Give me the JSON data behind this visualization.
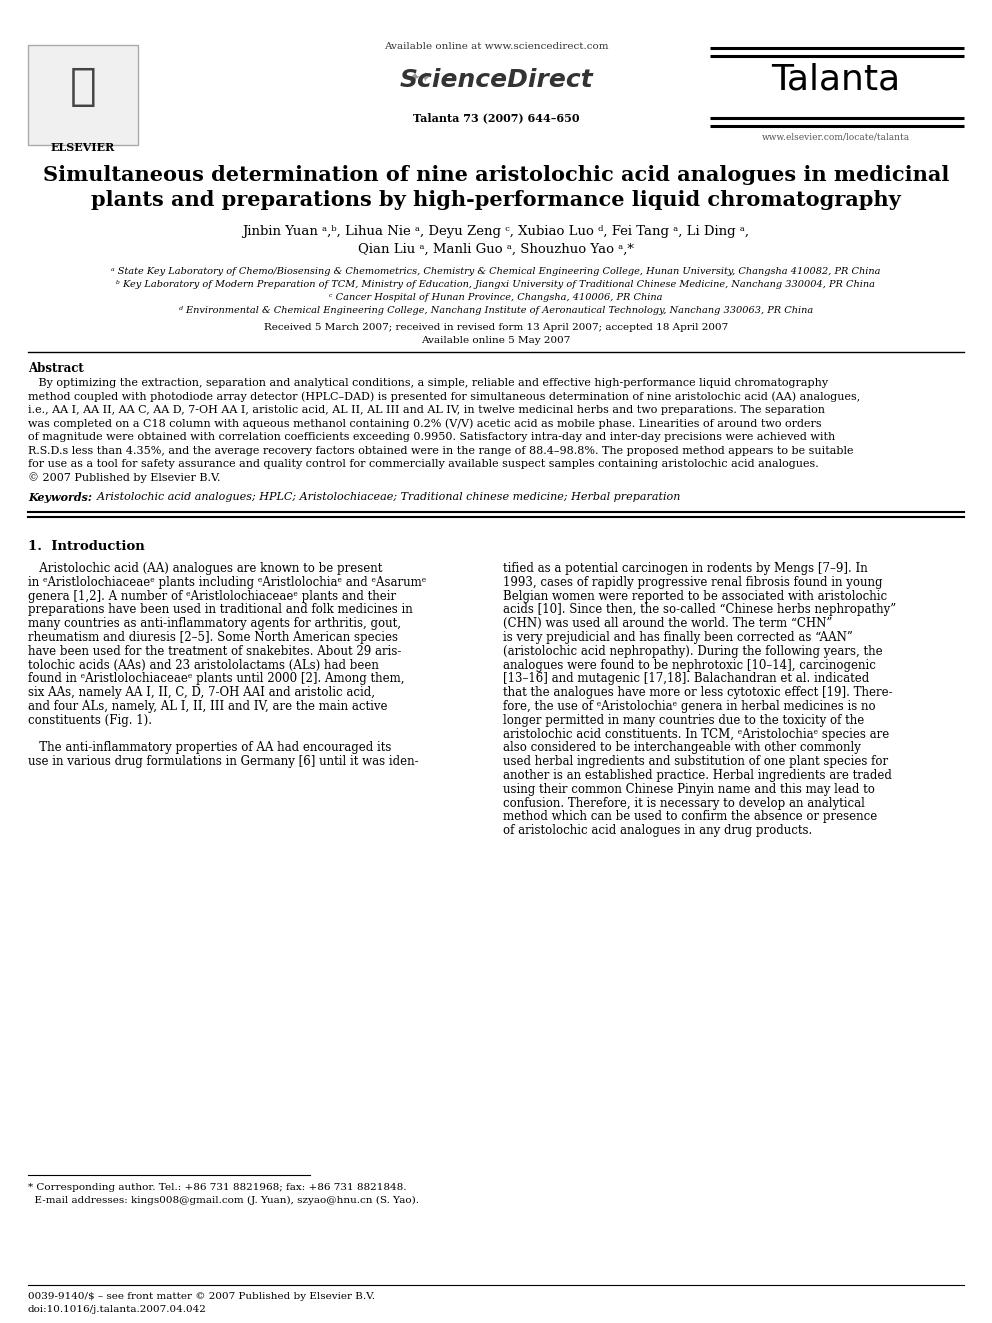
{
  "bg_color": "#ffffff",
  "title_line1": "Simultaneous determination of nine aristolochic acid analogues in medicinal",
  "title_line2": "plants and preparations by high-performance liquid chromatography",
  "journal_name": "Talanta",
  "journal_info": "Talanta 73 (2007) 644–650",
  "available_online": "Available online at www.sciencedirect.com",
  "journal_url": "www.elsevier.com/locate/talanta",
  "elsevier_text": "ELSEVIER",
  "abstract_title": "Abstract",
  "keywords_label": "Keywords:",
  "keywords_text": "  Aristolochic acid analogues; HPLC; Aristolochiaceae; Traditional chinese medicine; Herbal preparation",
  "section1_title": "1.  Introduction",
  "affil_a": "ᵃ State Key Laboratory of Chemo/Biosensing & Chemometrics, Chemistry & Chemical Engineering College, Hunan University, Changsha 410082, PR China",
  "affil_b": "ᵇ Key Laboratory of Modern Preparation of TCM, Ministry of Education, Jiangxi University of Traditional Chinese Medicine, Nanchang 330004, PR China",
  "affil_c": "ᶜ Cancer Hospital of Hunan Province, Changsha, 410006, PR China",
  "affil_d": "ᵈ Environmental & Chemical Engineering College, Nanchang Institute of Aeronautical Technology, Nanchang 330063, PR China",
  "author_line1": "Jinbin Yuan ᵃ,ᵇ, Lihua Nie ᵃ, Deyu Zeng ᶜ, Xubiao Luo ᵈ, Fei Tang ᵃ, Li Ding ᵃ,",
  "author_line2": "Qian Liu ᵃ, Manli Guo ᵃ, Shouzhuo Yao ᵃ,*",
  "received": "Received 5 March 2007; received in revised form 13 April 2007; accepted 18 April 2007",
  "available5": "Available online 5 May 2007",
  "abstract_lines": [
    "   By optimizing the extraction, separation and analytical conditions, a simple, reliable and effective high-performance liquid chromatography",
    "method coupled with photodiode array detector (HPLC–DAD) is presented for simultaneous determination of nine aristolochic acid (AA) analogues,",
    "i.e., AA I, AA II, AA C, AA D, 7-OH AA I, aristolic acid, AL II, AL III and AL IV, in twelve medicinal herbs and two preparations. The separation",
    "was completed on a C18 column with aqueous methanol containing 0.2% (V/V) acetic acid as mobile phase. Linearities of around two orders",
    "of magnitude were obtained with correlation coefficients exceeding 0.9950. Satisfactory intra-day and inter-day precisions were achieved with",
    "R.S.D.s less than 4.35%, and the average recovery factors obtained were in the range of 88.4–98.8%. The proposed method appears to be suitable",
    "for use as a tool for safety assurance and quality control for commercially available suspect samples containing aristolochic acid analogues.",
    "© 2007 Published by Elsevier B.V."
  ],
  "col1_lines": [
    "   Aristolochic acid (AA) analogues are known to be present",
    "in ᵉAristlolochiaceaeᵉ plants including ᵉAristlolochiaᵉ and ᵉAsarumᵉ",
    "genera [1,2]. A number of ᵉAristlolochiaceaeᵉ plants and their",
    "preparations have been used in traditional and folk medicines in",
    "many countries as anti-inflammatory agents for arthritis, gout,",
    "rheumatism and diuresis [2–5]. Some North American species",
    "have been used for the treatment of snakebites. About 29 aris-",
    "tolochic acids (AAs) and 23 aristololactams (ALs) had been",
    "found in ᵉAristlolochiaceaeᵉ plants until 2000 [2]. Among them,",
    "six AAs, namely AA I, II, C, D, 7-OH AAI and aristolic acid,",
    "and four ALs, namely, AL I, II, III and IV, are the main active",
    "constituents (Fig. 1).",
    "",
    "   The anti-inflammatory properties of AA had encouraged its",
    "use in various drug formulations in Germany [6] until it was iden-"
  ],
  "col2_lines": [
    "tified as a potential carcinogen in rodents by Mengs [7–9]. In",
    "1993, cases of rapidly progressive renal fibrosis found in young",
    "Belgian women were reported to be associated with aristolochic",
    "acids [10]. Since then, the so-called “Chinese herbs nephropathy”",
    "(CHN) was used all around the world. The term “CHN”",
    "is very prejudicial and has finally been corrected as “AAN”",
    "(aristolochic acid nephropathy). During the following years, the",
    "analogues were found to be nephrotoxic [10–14], carcinogenic",
    "[13–16] and mutagenic [17,18]. Balachandran et al. indicated",
    "that the analogues have more or less cytotoxic effect [19]. There-",
    "fore, the use of ᵉAristolochiaᵉ genera in herbal medicines is no",
    "longer permitted in many countries due to the toxicity of the",
    "aristolochic acid constituents. In TCM, ᵉAristolochiaᵉ species are",
    "also considered to be interchangeable with other commonly",
    "used herbal ingredients and substitution of one plant species for",
    "another is an established practice. Herbal ingredients are traded",
    "using their common Chinese Pinyin name and this may lead to",
    "confusion. Therefore, it is necessary to develop an analytical",
    "method which can be used to confirm the absence or presence",
    "of aristolochic acid analogues in any drug products."
  ],
  "fn1": "* Corresponding author. Tel.: +86 731 8821968; fax: +86 731 8821848.",
  "fn2": "  E-mail addresses: kings008@gmail.com (J. Yuan), szyao@hnu.cn (S. Yao).",
  "bot1": "0039-9140/$ – see front matter © 2007 Published by Elsevier B.V.",
  "bot2": "doi:10.1016/j.talanta.2007.04.042"
}
